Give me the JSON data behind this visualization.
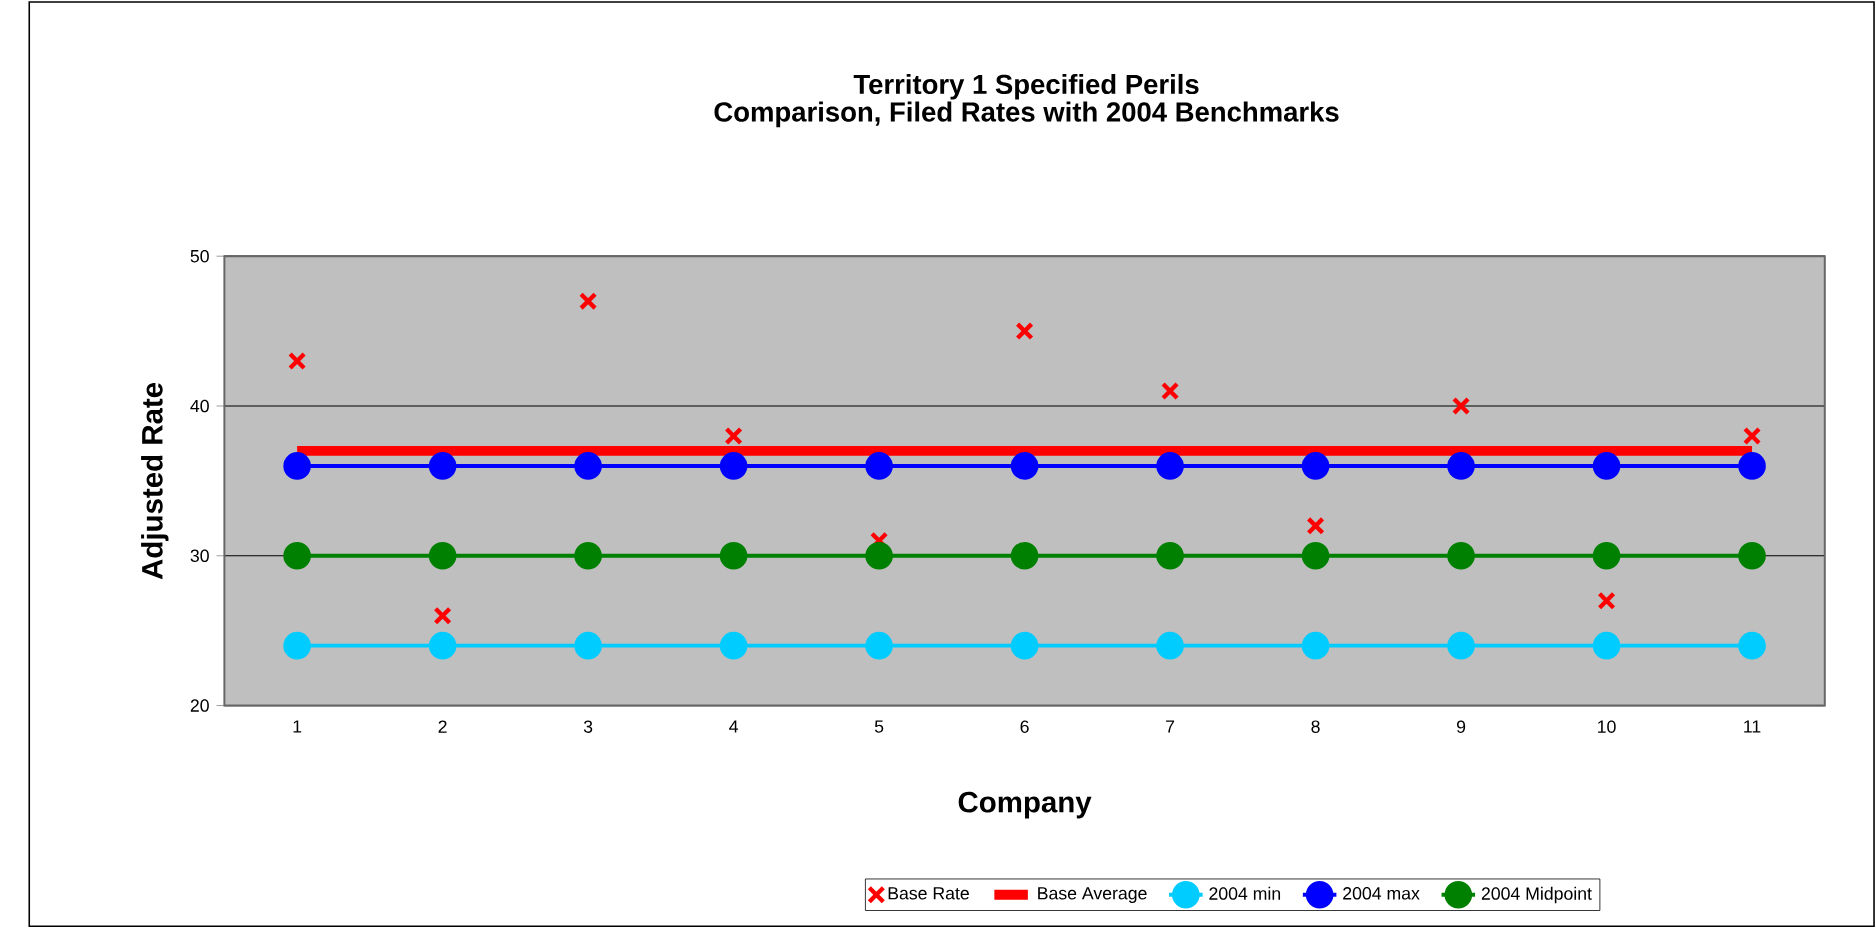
{
  "chart_data": {
    "type": "line",
    "title": "Territory 1 Specified Perils",
    "subtitle": "Comparison, Filed Rates with 2004 Benchmarks",
    "xlabel": "Company",
    "ylabel": "Adjusted Rate",
    "categories": [
      "1",
      "2",
      "3",
      "4",
      "5",
      "6",
      "7",
      "8",
      "9",
      "10",
      "11"
    ],
    "series": [
      {
        "name": "Base Rate",
        "type": "scatter",
        "marker": "cross",
        "color": "#ff0000",
        "values": [
          43,
          26,
          47,
          38,
          31,
          45,
          41,
          32,
          40,
          27,
          38
        ]
      },
      {
        "name": "Base Average",
        "marker": "none",
        "color": "#ff0000",
        "values": [
          37,
          37,
          37,
          37,
          37,
          37,
          37,
          37,
          37,
          37,
          37
        ]
      },
      {
        "name": "2004 min",
        "marker": "circle",
        "color": "#00ccff",
        "values": [
          24,
          24,
          24,
          24,
          24,
          24,
          24,
          24,
          24,
          24,
          24
        ]
      },
      {
        "name": "2004 max",
        "marker": "circle",
        "color": "#0000ff",
        "values": [
          36,
          36,
          36,
          36,
          36,
          36,
          36,
          36,
          36,
          36,
          36
        ]
      },
      {
        "name": "2004 Midpoint",
        "marker": "circle",
        "color": "#008000",
        "values": [
          30,
          30,
          30,
          30,
          30,
          30,
          30,
          30,
          30,
          30,
          30
        ]
      }
    ],
    "ylim": [
      20,
      50
    ],
    "yticks": [
      20,
      30,
      40,
      50
    ],
    "grid": "y",
    "legend": "bottom"
  }
}
